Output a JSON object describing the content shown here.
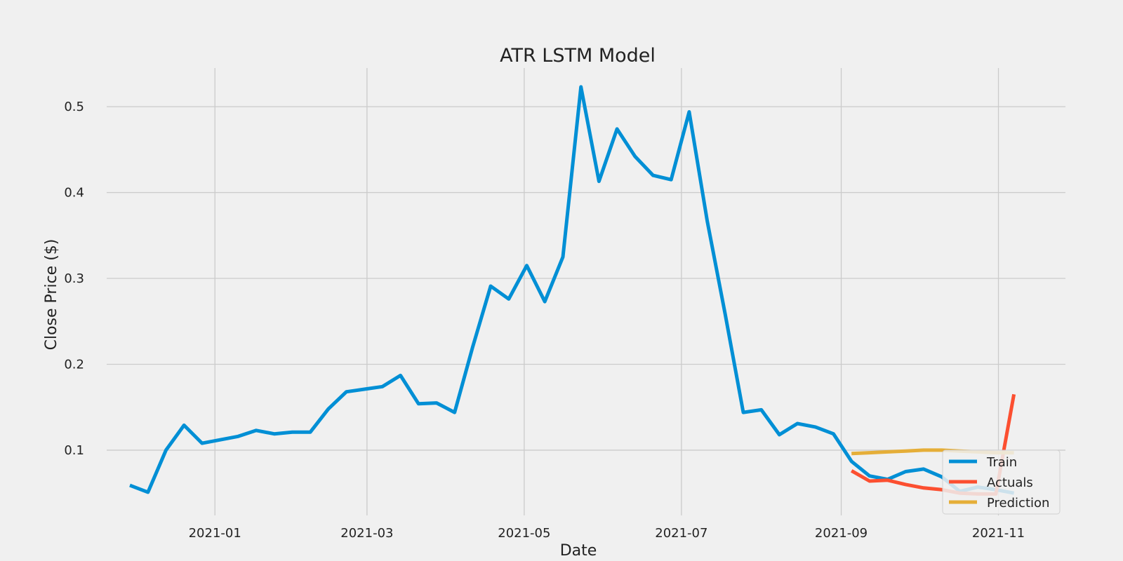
{
  "chart_data": {
    "type": "line",
    "title": "ATR LSTM Model",
    "xlabel": "Date",
    "ylabel": "Close Price ($)",
    "x_ticks": [
      "2021-01",
      "2021-03",
      "2021-05",
      "2021-07",
      "2021-09",
      "2021-11"
    ],
    "y_ticks": [
      "0.1",
      "0.2",
      "0.3",
      "0.4",
      "0.5"
    ],
    "xlim": [
      "2020-11-20",
      "2021-11-27"
    ],
    "ylim": [
      0.024,
      0.545
    ],
    "grid": true,
    "legend_position": "lower-right",
    "series": [
      {
        "name": "Train",
        "color": "#008fd5",
        "x": [
          "2020-11-29",
          "2020-12-06",
          "2020-12-13",
          "2020-12-20",
          "2020-12-27",
          "2021-01-03",
          "2021-01-10",
          "2021-01-17",
          "2021-01-24",
          "2021-01-31",
          "2021-02-07",
          "2021-02-14",
          "2021-02-21",
          "2021-02-28",
          "2021-03-07",
          "2021-03-14",
          "2021-03-21",
          "2021-03-28",
          "2021-04-04",
          "2021-04-11",
          "2021-04-18",
          "2021-04-25",
          "2021-05-02",
          "2021-05-09",
          "2021-05-16",
          "2021-05-23",
          "2021-05-30",
          "2021-06-06",
          "2021-06-13",
          "2021-06-20",
          "2021-06-27",
          "2021-07-04",
          "2021-07-11",
          "2021-07-18",
          "2021-07-25",
          "2021-08-01",
          "2021-08-08",
          "2021-08-15",
          "2021-08-22",
          "2021-08-29",
          "2021-09-05",
          "2021-09-12",
          "2021-09-19",
          "2021-09-26",
          "2021-10-03",
          "2021-10-10",
          "2021-10-17",
          "2021-10-24",
          "2021-10-31",
          "2021-11-07"
        ],
        "values": [
          0.059,
          0.051,
          0.1,
          0.129,
          0.108,
          0.112,
          0.116,
          0.123,
          0.119,
          0.121,
          0.121,
          0.148,
          0.168,
          0.171,
          0.174,
          0.187,
          0.154,
          0.155,
          0.144,
          0.22,
          0.291,
          0.276,
          0.315,
          0.273,
          0.325,
          0.523,
          0.413,
          0.474,
          0.442,
          0.42,
          0.415,
          0.494,
          0.367,
          0.258,
          0.144,
          0.147,
          0.118,
          0.131,
          0.127,
          0.119,
          0.087,
          0.07,
          0.066,
          0.075,
          0.078,
          0.069,
          0.052,
          0.057,
          0.054,
          0.05
        ]
      },
      {
        "name": "Actuals",
        "color": "#fc4f30",
        "x": [
          "2021-09-05",
          "2021-09-12",
          "2021-09-19",
          "2021-09-26",
          "2021-10-03",
          "2021-10-10",
          "2021-10-17",
          "2021-10-24",
          "2021-10-31",
          "2021-11-07"
        ],
        "values": [
          0.076,
          0.064,
          0.065,
          0.06,
          0.056,
          0.054,
          0.05,
          0.049,
          0.049,
          0.165
        ]
      },
      {
        "name": "Prediction",
        "color": "#e5ae38",
        "x": [
          "2021-09-05",
          "2021-09-12",
          "2021-09-19",
          "2021-09-26",
          "2021-10-03",
          "2021-10-10",
          "2021-10-17",
          "2021-10-24",
          "2021-10-31",
          "2021-11-07"
        ],
        "values": [
          0.096,
          0.097,
          0.098,
          0.099,
          0.1,
          0.1,
          0.099,
          0.098,
          0.097,
          0.097
        ]
      }
    ]
  }
}
